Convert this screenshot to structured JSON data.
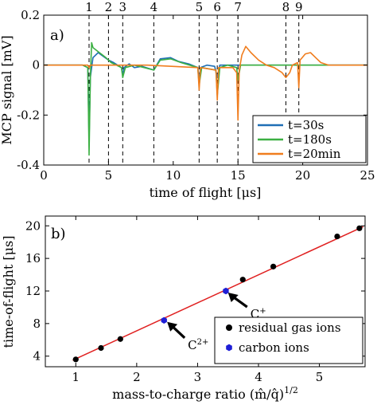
{
  "chart_data": [
    {
      "panel_label": "a)",
      "type": "line",
      "xlabel": "time of flight [μs]",
      "ylabel": "MCP signal [mV]",
      "xlim": [
        0,
        25
      ],
      "ylim": [
        -0.4,
        0.2
      ],
      "xticks": [
        "0",
        "5",
        "10",
        "15",
        "20",
        "25"
      ],
      "yticks": [
        "-0.4",
        "-0.2",
        "0",
        "0.2"
      ],
      "legend_position": "bottom-right",
      "peak_markers": [
        {
          "label": "1",
          "x": 3.5
        },
        {
          "label": "2",
          "x": 5.0
        },
        {
          "label": "3",
          "x": 6.1
        },
        {
          "label": "4",
          "x": 8.5
        },
        {
          "label": "5",
          "x": 12.0
        },
        {
          "label": "6",
          "x": 13.4
        },
        {
          "label": "7",
          "x": 15.0
        },
        {
          "label": "8",
          "x": 18.7
        },
        {
          "label": "9",
          "x": 19.7
        }
      ],
      "series": [
        {
          "name": "t=30s",
          "color": "#1f6fb5",
          "x": [
            0,
            3.0,
            3.4,
            3.5,
            3.6,
            3.8,
            4.2,
            4.6,
            5.0,
            5.4,
            6.0,
            6.1,
            6.2,
            6.6,
            7.0,
            7.6,
            8.5,
            9.0,
            9.8,
            10.4,
            11.2,
            11.9,
            12.0,
            12.1,
            12.6,
            13.2,
            13.4,
            13.6,
            14.2,
            15.0,
            16.0,
            18.0,
            20.0,
            25.0
          ],
          "y": [
            0,
            0,
            -0.01,
            -0.3,
            -0.05,
            0.03,
            0.05,
            0.035,
            0.02,
            0.01,
            -0.01,
            -0.04,
            -0.01,
            0.005,
            -0.01,
            -0.005,
            -0.02,
            0.025,
            0.03,
            0.015,
            0.005,
            -0.01,
            -0.06,
            -0.01,
            0.0,
            -0.005,
            -0.05,
            0.0,
            0.0,
            0.0,
            0.0,
            0.0,
            0.0,
            0.0
          ]
        },
        {
          "name": "t=180s",
          "color": "#3cb043",
          "x": [
            0,
            3.0,
            3.4,
            3.5,
            3.6,
            3.7,
            3.8,
            4.3,
            4.8,
            5.2,
            6.0,
            6.1,
            6.3,
            7.0,
            8.5,
            9.0,
            9.8,
            10.6,
            11.9,
            12.0,
            12.2,
            13.3,
            13.4,
            13.6,
            14.2,
            14.9,
            15.0,
            15.2,
            16.0,
            18.0,
            25.0
          ],
          "y": [
            0,
            0,
            -0.01,
            -0.36,
            -0.05,
            0.09,
            0.07,
            0.05,
            0.03,
            0.01,
            -0.01,
            -0.05,
            -0.01,
            0.0,
            -0.02,
            0.02,
            0.025,
            0.01,
            -0.01,
            -0.08,
            -0.01,
            -0.02,
            -0.12,
            -0.01,
            0.0,
            -0.01,
            -0.06,
            0.0,
            0.0,
            0.0,
            0.0
          ]
        },
        {
          "name": "t=20min",
          "color": "#f07d1e",
          "x": [
            0,
            3.4,
            3.5,
            3.6,
            4.5,
            8.0,
            11.9,
            12.0,
            12.1,
            13.3,
            13.4,
            13.5,
            14.6,
            14.9,
            15.0,
            15.1,
            15.3,
            15.6,
            16.0,
            16.6,
            17.2,
            17.8,
            18.4,
            18.7,
            19.0,
            19.2,
            19.6,
            19.7,
            19.8,
            20.2,
            20.6,
            21.0,
            21.4,
            22.0,
            25.0
          ],
          "y": [
            0,
            0,
            -0.01,
            0.0,
            0.0,
            0.0,
            -0.01,
            -0.1,
            -0.01,
            -0.02,
            -0.14,
            -0.01,
            -0.01,
            -0.03,
            -0.22,
            -0.02,
            0.04,
            0.075,
            0.05,
            0.02,
            0.0,
            -0.01,
            -0.03,
            -0.05,
            -0.03,
            0.0,
            0.01,
            -0.09,
            0.02,
            0.045,
            0.05,
            0.03,
            0.01,
            0.0,
            0.0
          ]
        }
      ]
    },
    {
      "panel_label": "b)",
      "type": "scatter",
      "xlabel": "mass-to-charge ratio (m̂/q̂)",
      "xlabel_exponent": "1/2",
      "ylabel": "time-of-flight [μs]",
      "xlim": [
        0.5,
        5.75
      ],
      "ylim": [
        2.7,
        21.2
      ],
      "xticks": [
        "1",
        "2",
        "3",
        "4",
        "5"
      ],
      "yticks": [
        "4",
        "8",
        "12",
        "16",
        "20"
      ],
      "legend_position": "bottom-right",
      "fit_line": {
        "color": "#e02020",
        "x": [
          0.95,
          5.72
        ],
        "y": [
          3.5,
          19.9
        ]
      },
      "series": [
        {
          "name": "residual gas ions",
          "color": "#000000",
          "x": [
            1.0,
            1.414,
            1.732,
            3.464,
            3.742,
            4.243,
            5.292,
            5.657
          ],
          "y": [
            3.6,
            5.0,
            6.1,
            12.0,
            13.4,
            15.0,
            18.7,
            19.7
          ]
        },
        {
          "name": "carbon ions",
          "color": "#1e1ed6",
          "x": [
            2.449,
            3.464
          ],
          "y": [
            8.4,
            12.0
          ]
        }
      ],
      "annotations": [
        {
          "text": "C",
          "sup": "+",
          "arrow_to": [
            3.5,
            11.8
          ]
        },
        {
          "text": "C",
          "sup": "2+",
          "arrow_to": [
            2.5,
            8.2
          ]
        }
      ]
    }
  ]
}
